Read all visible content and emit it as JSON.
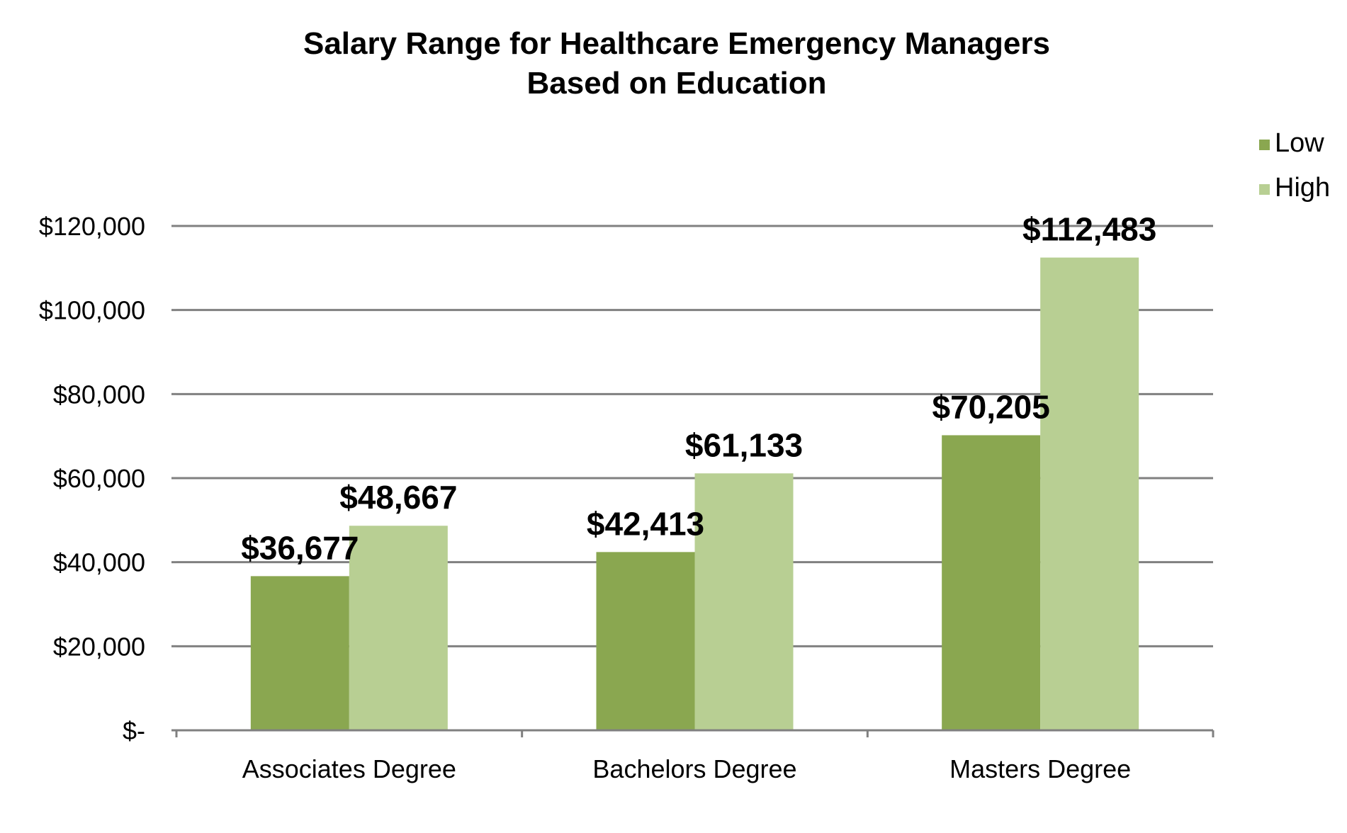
{
  "chart_data": {
    "type": "bar",
    "title": "Salary Range for Healthcare Emergency Managers Based on Education",
    "title_lines": [
      "Salary Range for Healthcare Emergency Managers",
      "Based on Education"
    ],
    "categories": [
      "Associates Degree",
      "Bachelors Degree",
      "Masters Degree"
    ],
    "series": [
      {
        "name": "Low",
        "color": "#8aa750",
        "values": [
          36677,
          42413,
          70205
        ],
        "labels": [
          "$36,677",
          "$42,413",
          "$70,205"
        ]
      },
      {
        "name": "High",
        "color": "#b8cf93",
        "values": [
          48667,
          61133,
          112483
        ],
        "labels": [
          "$48,667",
          "$61,133",
          "$112,483"
        ]
      }
    ],
    "ylim": [
      0,
      120000
    ],
    "yticks": [
      0,
      20000,
      40000,
      60000,
      80000,
      100000,
      120000
    ],
    "ytick_labels": [
      "$-",
      "$20,000",
      "$40,000",
      "$60,000",
      "$80,000",
      "$100,000",
      "$120,000"
    ],
    "xlabel": "",
    "ylabel": "",
    "grid": true,
    "grid_color": "#808080",
    "legend_position": "top-right"
  }
}
